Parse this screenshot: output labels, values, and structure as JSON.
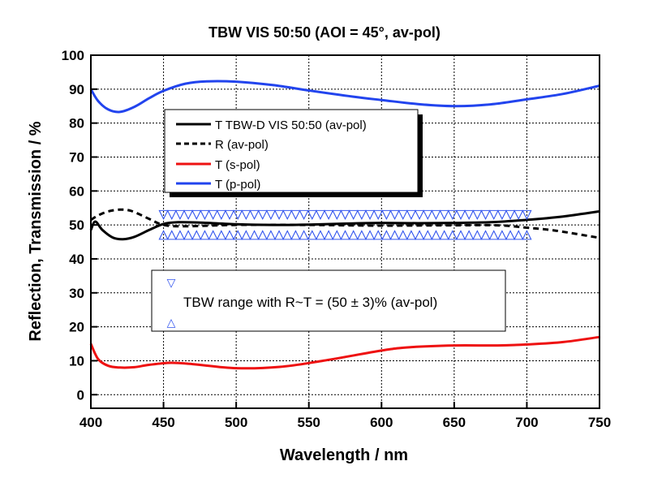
{
  "chart_data": {
    "type": "line",
    "title": "TBW VIS 50:50 (AOI = 45°, av-pol)",
    "xlabel": "Wavelength / nm",
    "ylabel": "Reflection, Transmission / %",
    "xlim": [
      400,
      750
    ],
    "ylim": [
      -4,
      100
    ],
    "xticks": [
      400,
      450,
      500,
      550,
      600,
      650,
      700,
      750
    ],
    "yticks": [
      0,
      10,
      20,
      30,
      40,
      50,
      60,
      70,
      80,
      90,
      100
    ],
    "grid": true,
    "legend_position": "upper-middle",
    "series": [
      {
        "name": "T TBW-D VIS 50:50 (av-pol)",
        "color": "#000000",
        "dash": "solid",
        "x": [
          400,
          403,
          408,
          415,
          422,
          430,
          440,
          450,
          460,
          475,
          500,
          525,
          550,
          575,
          600,
          625,
          650,
          675,
          700,
          725,
          750
        ],
        "y": [
          48.5,
          51.0,
          48.5,
          46.3,
          45.8,
          46.5,
          48.5,
          50.3,
          50.8,
          50.7,
          50.2,
          50.0,
          50.1,
          50.4,
          50.6,
          50.5,
          50.6,
          50.8,
          51.5,
          52.5,
          54.0
        ]
      },
      {
        "name": "R (av-pol)",
        "color": "#000000",
        "dash": "dashed",
        "x": [
          400,
          405,
          412,
          420,
          428,
          440,
          450,
          465,
          500,
          550,
          600,
          650,
          680,
          700,
          720,
          750
        ],
        "y": [
          51.5,
          52.8,
          54.0,
          54.5,
          54.1,
          51.8,
          50.0,
          49.6,
          50.0,
          50.0,
          49.8,
          49.9,
          49.9,
          49.2,
          48.3,
          46.2
        ]
      },
      {
        "name": "T (s-pol)",
        "color": "#ee1111",
        "dash": "solid",
        "x": [
          400,
          405,
          412,
          420,
          430,
          440,
          455,
          470,
          500,
          530,
          560,
          600,
          620,
          650,
          680,
          700,
          725,
          750
        ],
        "y": [
          15.0,
          10.5,
          8.5,
          8.0,
          8.1,
          8.8,
          9.4,
          9.0,
          7.8,
          8.2,
          10.0,
          13.0,
          14.0,
          14.5,
          14.5,
          14.8,
          15.5,
          17.0
        ]
      },
      {
        "name": "T (p-pol)",
        "color": "#2244ee",
        "dash": "solid",
        "x": [
          400,
          405,
          412,
          420,
          430,
          440,
          450,
          465,
          480,
          500,
          525,
          550,
          580,
          600,
          625,
          650,
          675,
          700,
          725,
          750
        ],
        "y": [
          90.0,
          86.5,
          84.0,
          83.3,
          84.8,
          87.3,
          89.5,
          91.6,
          92.3,
          92.2,
          91.2,
          89.6,
          87.8,
          86.8,
          85.6,
          85.0,
          85.5,
          87.0,
          88.6,
          91.0
        ]
      }
    ],
    "tbw_markers": {
      "x_start": 450,
      "x_end": 700,
      "count": 45,
      "upper_level": 53,
      "lower_level": 47,
      "color": "#3355ee"
    },
    "annotation": {
      "text": "TBW range with R~T = (50 ± 3)% (av-pol)",
      "upper_symbol": "▽",
      "lower_symbol": "△"
    }
  }
}
